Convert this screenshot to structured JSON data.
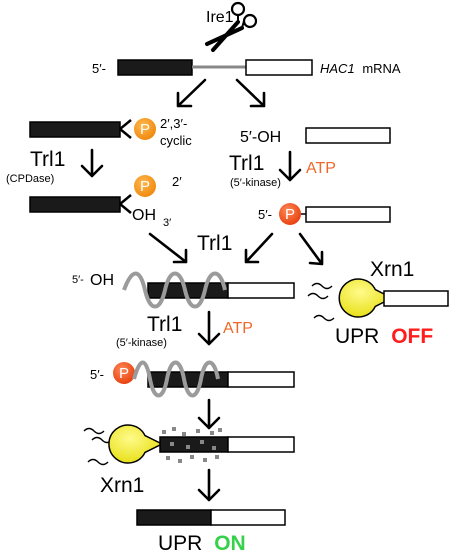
{
  "enzyme_ire1": "Ire1",
  "mrna_5prime": "5′-",
  "mrna_hac1": "HAC1",
  "mrna_word": "mRNA",
  "left_branch": {
    "p_label": "P",
    "cyclic_line1": "2′,3′-",
    "cyclic_line2": "cyclic",
    "trl1": "Trl1",
    "cpdase": "(CPDase)",
    "p2_label": "P",
    "two_prime": "2′",
    "oh": "OH",
    "three_prime": "3′"
  },
  "right_branch": {
    "oh_5prime": "5′-OH",
    "trl1": "Trl1",
    "atp": "ATP",
    "kinase": "(5′-kinase)",
    "p5_prefix": "5′-",
    "p_label": "P"
  },
  "ligation": {
    "trl1": "Trl1",
    "oh_5prime": "5′-OH"
  },
  "decay": {
    "xrn1": "Xrn1",
    "upr": "UPR",
    "off": "OFF"
  },
  "bottom": {
    "trl1": "Trl1",
    "atp": "ATP",
    "kinase": "(5′-kinase)",
    "p5_prefix": "5′-",
    "p_label": "P",
    "xrn1": "Xrn1",
    "upr": "UPR",
    "on": "ON"
  },
  "colors": {
    "phosphate_light": "#f7941d",
    "phosphate_dark": "#f0501e",
    "atp": "#f0672a",
    "xrn1_yellow": "#f2ee1e",
    "on_green": "#36d14a",
    "off_red": "#ff1d1d"
  }
}
